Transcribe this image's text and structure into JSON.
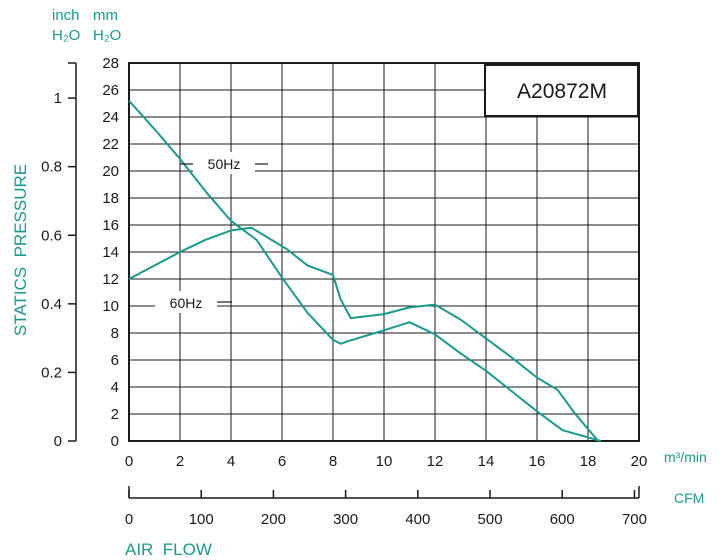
{
  "chart_data": {
    "type": "line",
    "title": "A20872M",
    "units": {
      "inch_h2o": "inch\nH₂O",
      "inch": "inch",
      "inch_sub": "H₂O",
      "mm": "mm",
      "mm_sub": "H₂O",
      "m3min": "m³/min",
      "cfm": "CFM"
    },
    "ylabel": "STATICS  PRESSURE",
    "xlabel": "AIR  FLOW",
    "x_m3min_ticks": [
      "0",
      "2",
      "4",
      "6",
      "8",
      "10",
      "12",
      "14",
      "16",
      "18",
      "20"
    ],
    "x_cfm_ticks": [
      "0",
      "100",
      "200",
      "300",
      "400",
      "500",
      "600",
      "700"
    ],
    "y_mm_ticks": [
      "0",
      "2",
      "4",
      "6",
      "8",
      "10",
      "12",
      "14",
      "16",
      "18",
      "20",
      "22",
      "24",
      "26",
      "28"
    ],
    "y_inch_ticks": [
      "0",
      "0.2",
      "0.4",
      "0.6",
      "0.8",
      "1"
    ],
    "xlim": [
      0,
      20
    ],
    "ylim": [
      0,
      28
    ],
    "grid": true,
    "series": [
      {
        "name": "50Hz",
        "x": [
          0,
          1,
          2,
          3,
          4,
          5,
          6,
          7,
          8,
          8.3,
          8.6,
          10,
          11,
          12,
          13,
          14,
          15,
          16,
          17,
          18.5
        ],
        "y": [
          25.2,
          23.1,
          20.9,
          18.5,
          16.3,
          14.9,
          12.1,
          9.5,
          7.5,
          7.2,
          7.4,
          8.2,
          8.8,
          7.9,
          6.5,
          5.2,
          3.7,
          2.2,
          0.8,
          0
        ]
      },
      {
        "name": "60Hz",
        "x": [
          0,
          1,
          2,
          3,
          4,
          4.8,
          5.5,
          6.2,
          7,
          8,
          8.3,
          8.7,
          10,
          11,
          12,
          13,
          14,
          15,
          16,
          16.8,
          17.5,
          18.4
        ],
        "y": [
          12,
          13,
          14,
          14.9,
          15.6,
          15.8,
          15,
          14.2,
          13,
          12.3,
          10.5,
          9.1,
          9.4,
          9.9,
          10.1,
          9,
          7.6,
          6.2,
          4.7,
          3.8,
          2,
          0
        ]
      }
    ],
    "colors": {
      "curve": "#1a9a8c",
      "axis_label": "#1a9a8c",
      "grid": "#1a1a1a"
    }
  }
}
